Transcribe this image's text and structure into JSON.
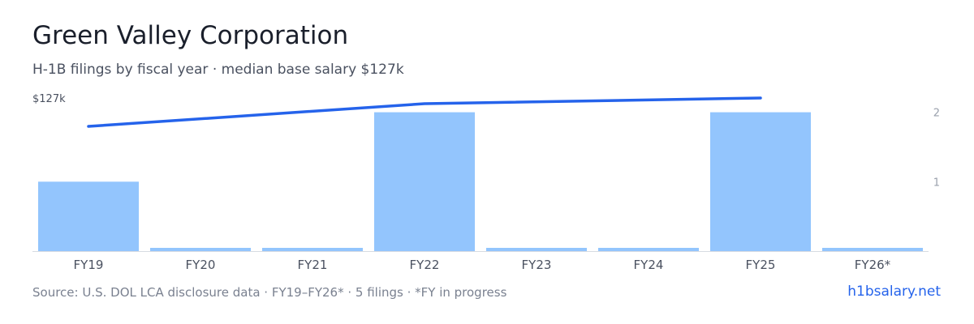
{
  "header": {
    "title": "Green Valley Corporation",
    "subtitle": "H-1B filings by fiscal year · median base salary $127k"
  },
  "footer": {
    "source": "Source: U.S. DOL LCA disclosure data · FY19–FY26* · 5 filings · *FY in progress",
    "brand": "h1bsalary.net"
  },
  "colors": {
    "bar": "#93c5fd",
    "line": "#2563eb",
    "axis": "#d7dbe2",
    "tick_text": "#4a5160",
    "right_tick_text": "#9aa1ad",
    "brand": "#2563eb"
  },
  "chart_data": {
    "type": "bar",
    "categories": [
      "FY19",
      "FY20",
      "FY21",
      "FY22",
      "FY23",
      "FY24",
      "FY25",
      "FY26*"
    ],
    "series": [
      {
        "type": "bar",
        "axis": "right",
        "values": [
          1,
          0,
          0,
          2,
          0,
          0,
          2,
          0
        ]
      },
      {
        "type": "line",
        "axis": "left",
        "x": [
          "FY19",
          "FY22",
          "FY25"
        ],
        "values": [
          122,
          126,
          127
        ]
      }
    ],
    "left_axis": {
      "tick_labels": [
        "$127k"
      ],
      "ylim": [
        100,
        130
      ]
    },
    "right_axis": {
      "ticks": [
        "1",
        "2"
      ],
      "ylim": [
        0,
        2.45
      ]
    },
    "grid": false,
    "legend": "none"
  }
}
